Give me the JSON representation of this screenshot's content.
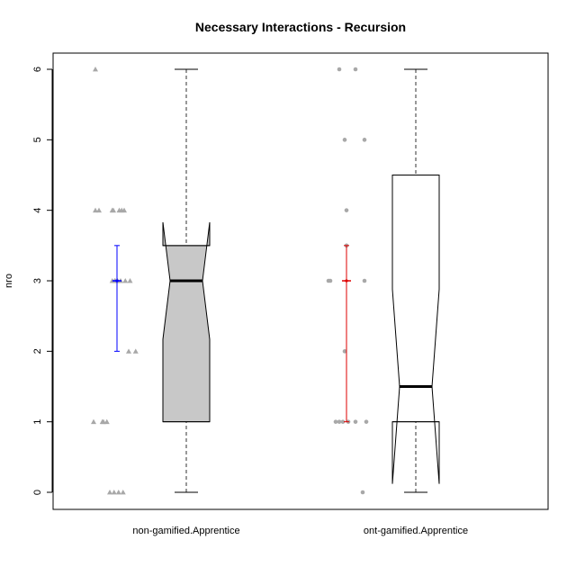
{
  "chart_data": {
    "type": "box",
    "title": "Necessary Interactions - Recursion",
    "xlabel": "",
    "ylabel": "nro",
    "ylim": [
      0,
      6
    ],
    "yticks": [
      0,
      1,
      2,
      3,
      4,
      5,
      6
    ],
    "categories": [
      "non-gamified.Apprentice",
      "ont-gamified.Apprentice"
    ],
    "boxes": [
      {
        "name": "non-gamified.Apprentice",
        "fill": "#c8c8c8",
        "whisker_low": 0,
        "q1": 1,
        "median": 3,
        "q3": 3.5,
        "whisker_high": 6,
        "notch_low": 2.17,
        "notch_high": 3.83
      },
      {
        "name": "ont-gamified.Apprentice",
        "fill": "#ffffff",
        "whisker_low": 0,
        "q1": 1,
        "median": 1.5,
        "q3": 4.5,
        "whisker_high": 6,
        "notch_low": 0.12,
        "notch_high": 2.88
      }
    ],
    "points": [
      {
        "group": "non-gamified.Apprentice",
        "marker": "triangle",
        "color": "#a8a8a8",
        "x_offset": [
          0,
          0,
          0,
          0,
          0.03,
          0.1,
          0.13,
          0.16,
          0.08,
          0.11,
          0.14,
          0.19,
          0.24,
          0.29,
          0.34,
          0.04,
          0.19,
          0.08,
          0.15,
          0.11,
          0.16,
          0.19,
          0.23,
          0.27,
          0
        ],
        "values": [
          6,
          4,
          4,
          4,
          4,
          4,
          4,
          4,
          3,
          3,
          3,
          3,
          3,
          3,
          3,
          2,
          2,
          1,
          1,
          1,
          0,
          0,
          0,
          0,
          1
        ]
      },
      {
        "group": "ont-gamified.Apprentice",
        "marker": "circle",
        "color": "#a8a8a8",
        "x_offset": [
          0,
          0,
          0,
          0,
          0,
          0,
          0,
          0,
          0,
          0,
          0,
          0,
          0,
          0,
          0,
          0,
          0
        ],
        "values": [
          6,
          6,
          5,
          5,
          4,
          3,
          3,
          3,
          2,
          1,
          1,
          1,
          1,
          1,
          1,
          0,
          3.5
        ]
      }
    ],
    "mean_sd": [
      {
        "group": "non-gamified.Apprentice",
        "color": "#0000ff",
        "mean": 3,
        "low": 2,
        "high": 3.5
      },
      {
        "group": "ont-gamified.Apprentice",
        "color": "#dd0000",
        "mean": 3,
        "low": 1,
        "high": 3.5
      }
    ]
  }
}
